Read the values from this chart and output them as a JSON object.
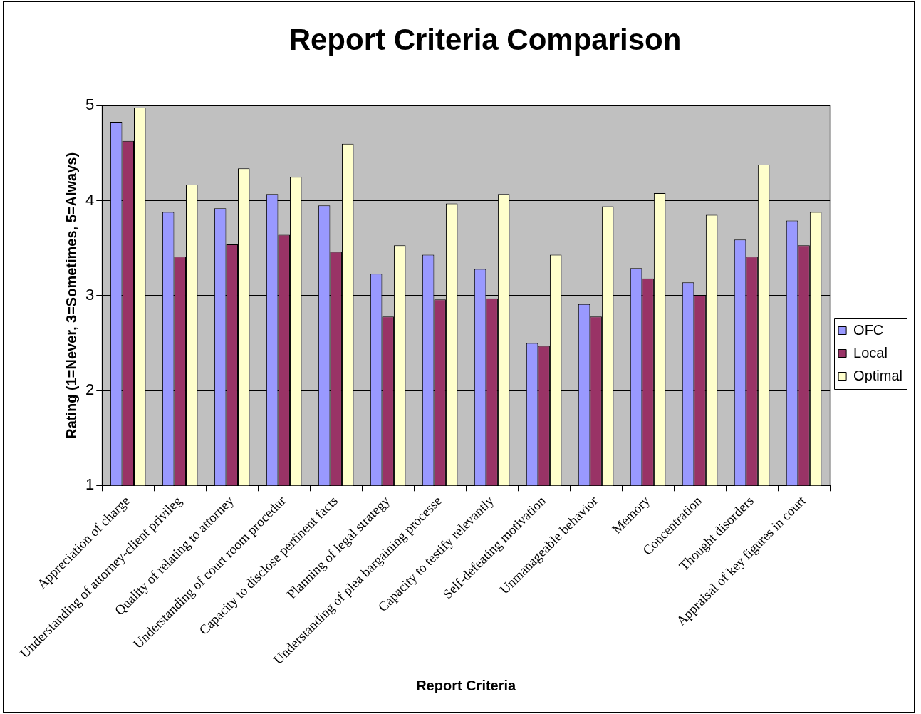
{
  "chart_data": {
    "type": "bar",
    "title": "Report Criteria Comparison",
    "xlabel": "Report Criteria",
    "ylabel": "Rating (1=Never, 3=Sometimes, 5=Always)",
    "categories": [
      "Appreciation of charge",
      "Understanding of attorney-client privileg",
      "Quality of relating to attorney",
      "Understanding of court room procedur",
      "Capacity to disclose pertinent facts",
      "Planning of legal strategy",
      "Understanding of plea bargaining processe",
      "Capacity to testify relevantly",
      "Self-defeating motivation",
      "Unmanageable behavior",
      "Memory",
      "Concentration",
      "Thought disorders",
      "Appraisal of key figures in court"
    ],
    "series": [
      {
        "name": "OFC",
        "color": "#9999ff",
        "values": [
          4.83,
          3.88,
          3.92,
          4.07,
          3.95,
          3.23,
          3.43,
          3.28,
          2.5,
          2.91,
          3.29,
          3.14,
          3.59,
          3.79
        ]
      },
      {
        "name": "Local",
        "color": "#993366",
        "values": [
          4.63,
          3.41,
          3.54,
          3.64,
          3.46,
          2.78,
          2.96,
          2.97,
          2.47,
          2.78,
          3.18,
          3.0,
          3.41,
          3.53
        ]
      },
      {
        "name": "Optimal",
        "color": "#ffffcc",
        "values": [
          4.98,
          4.17,
          4.34,
          4.25,
          4.6,
          3.53,
          3.97,
          4.07,
          3.43,
          3.94,
          4.08,
          3.85,
          4.38,
          3.88
        ]
      }
    ],
    "ylim": [
      1,
      5
    ],
    "yticks": [
      1,
      2,
      3,
      4,
      5
    ],
    "grid": "y",
    "legend": "right"
  }
}
